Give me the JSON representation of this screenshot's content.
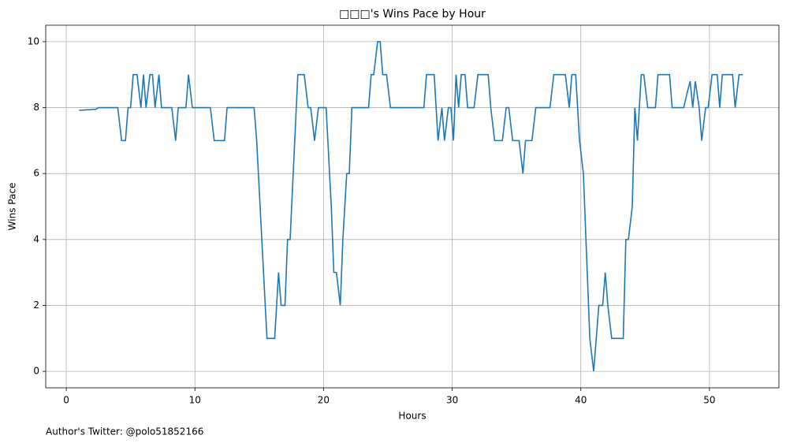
{
  "chart_data": {
    "type": "line",
    "title": "□□□'s Wins Pace by Hour",
    "xlabel": "Hours",
    "ylabel": "Wins Pace",
    "footer": "Author's Twitter: @polo51852166",
    "xlim": [
      -1.6,
      55.4
    ],
    "xticks": [
      0,
      10,
      20,
      30,
      40,
      50
    ],
    "ylim": [
      -0.5,
      10.5
    ],
    "yticks": [
      0,
      2,
      4,
      6,
      8,
      10
    ],
    "grid": true,
    "series": [
      {
        "name": "Wins Pace",
        "color": "#1f77b4",
        "x": [
          1,
          2.3,
          2.5,
          4.0,
          4.3,
          4.6,
          4.8,
          5.0,
          5.2,
          5.5,
          5.8,
          6.0,
          6.2,
          6.5,
          6.7,
          6.9,
          7.2,
          7.4,
          8.2,
          8.5,
          8.7,
          9.3,
          9.5,
          9.8,
          11.2,
          11.5,
          12.3,
          12.5,
          14.6,
          14.8,
          15.2,
          15.6,
          16.2,
          16.5,
          16.7,
          17.0,
          17.2,
          17.4,
          17.7,
          18.0,
          18.5,
          18.8,
          19.0,
          19.3,
          19.6,
          20.2,
          20.6,
          20.8,
          21.0,
          21.3,
          21.5,
          21.8,
          22.0,
          22.2,
          23.5,
          23.7,
          23.9,
          24.2,
          24.4,
          24.6,
          24.9,
          25.2,
          27.8,
          28.0,
          28.6,
          28.9,
          29.2,
          29.4,
          29.7,
          29.9,
          30.1,
          30.3,
          30.5,
          30.7,
          31.0,
          31.2,
          31.7,
          32.0,
          32.8,
          33.0,
          33.3,
          33.9,
          34.2,
          34.4,
          34.7,
          35.2,
          35.5,
          35.7,
          36.2,
          36.5,
          37.6,
          37.9,
          38.8,
          39.1,
          39.3,
          39.6,
          39.9,
          40.2,
          40.5,
          40.7,
          41.0,
          41.2,
          41.4,
          41.7,
          41.9,
          42.1,
          42.4,
          43.3,
          43.5,
          43.7,
          44.0,
          44.2,
          44.4,
          44.7,
          44.9,
          45.2,
          45.8,
          46.0,
          46.9,
          47.1,
          48.0,
          48.3,
          48.5,
          48.7,
          48.9,
          49.2,
          49.4,
          49.7,
          49.9,
          50.2,
          50.6,
          50.8,
          51.0,
          51.8,
          52.0,
          52.3,
          52.6
        ],
        "values": [
          7.92,
          7.95,
          8,
          8,
          7,
          7,
          8,
          8,
          9,
          9,
          8,
          9,
          8,
          9,
          9,
          8,
          9,
          8,
          8,
          7,
          8,
          8,
          9,
          8,
          8,
          7,
          7,
          8,
          8,
          7,
          4,
          1,
          1,
          3,
          2,
          2,
          4,
          4,
          6.5,
          9,
          9,
          8,
          8,
          7,
          8,
          8,
          5,
          3,
          3,
          2,
          4,
          6,
          6,
          8,
          8,
          9,
          9,
          10,
          10,
          9,
          9,
          8,
          8,
          9,
          9,
          7,
          8,
          7,
          8,
          8,
          7,
          9,
          8,
          9,
          9,
          8,
          8,
          9,
          9,
          8,
          7,
          7,
          8,
          8,
          7,
          7,
          6,
          7,
          7,
          8,
          8,
          9,
          9,
          8,
          9,
          9,
          7,
          6,
          3,
          1,
          0,
          1,
          2,
          2,
          3,
          2,
          1,
          1,
          4,
          4,
          5,
          8,
          7,
          9,
          9,
          8,
          8,
          9,
          9,
          8,
          8,
          8.5,
          8.8,
          8,
          8.8,
          8,
          7,
          8,
          8,
          9,
          9,
          8,
          9,
          9,
          8,
          9,
          9
        ]
      }
    ]
  }
}
